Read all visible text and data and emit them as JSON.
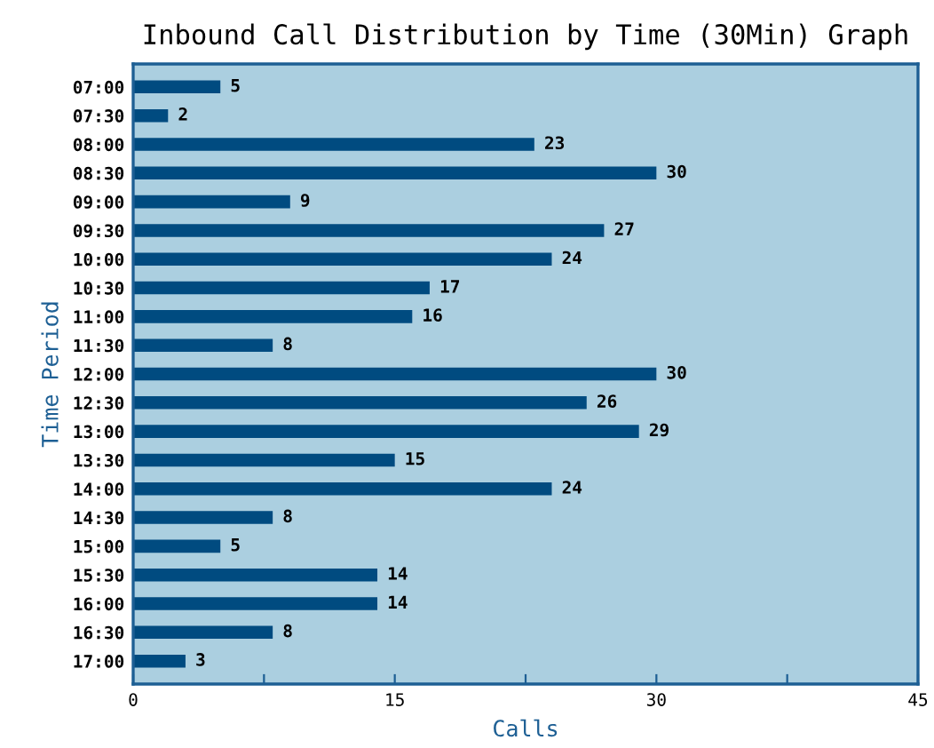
{
  "chart_data": {
    "type": "bar",
    "orientation": "horizontal",
    "title": "Inbound Call Distribution by Time (30Min) Graph",
    "xlabel": "Calls",
    "ylabel": "Time Period",
    "categories": [
      "07:00",
      "07:30",
      "08:00",
      "08:30",
      "09:00",
      "09:30",
      "10:00",
      "10:30",
      "11:00",
      "11:30",
      "12:00",
      "12:30",
      "13:00",
      "13:30",
      "14:00",
      "14:30",
      "15:00",
      "15:30",
      "16:00",
      "16:30",
      "17:00"
    ],
    "values": [
      5,
      2,
      23,
      30,
      9,
      27,
      24,
      17,
      16,
      8,
      30,
      26,
      29,
      15,
      24,
      8,
      5,
      14,
      14,
      8,
      3
    ],
    "color": "#004b80",
    "xlim": [
      0,
      45
    ],
    "xticks": [
      0,
      {
        "value": 7.5,
        "label": null
      },
      15,
      {
        "value": 22.5,
        "label": null
      },
      30,
      {
        "value": 37.5,
        "label": null
      },
      45
    ],
    "data_labels": true,
    "grid": false,
    "legend": false
  }
}
